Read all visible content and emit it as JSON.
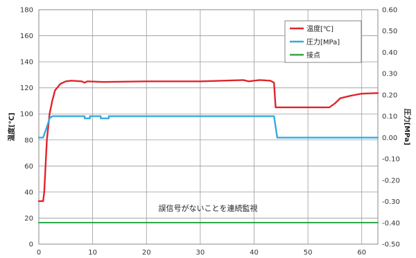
{
  "chart_data": {
    "type": "line",
    "x_range": [
      0,
      63
    ],
    "x_ticks": [
      0,
      10,
      20,
      30,
      40,
      50,
      60
    ],
    "y_left": {
      "label": "温度[℃]",
      "range": [
        0,
        180
      ],
      "ticks": [
        0,
        20,
        40,
        60,
        80,
        100,
        120,
        140,
        160,
        180
      ]
    },
    "y_right": {
      "label": "圧力[MPa]",
      "range": [
        -0.5,
        0.6
      ],
      "ticks": [
        "-0.50",
        "-0.40",
        "-0.30",
        "-0.20",
        "-0.10",
        "0.00",
        "0.10",
        "0.20",
        "0.30",
        "0.40",
        "0.50",
        "0.60"
      ]
    },
    "grid": true,
    "legend_position": "top-right",
    "annotation": "誤信号がないことを連続監視",
    "series": [
      {
        "name": "温度[℃]",
        "axis": "left",
        "color": "#e0242b",
        "points": [
          [
            0,
            33
          ],
          [
            0.8,
            33
          ],
          [
            1,
            40
          ],
          [
            1.5,
            80
          ],
          [
            2,
            100
          ],
          [
            2.5,
            110
          ],
          [
            3,
            118
          ],
          [
            4,
            123
          ],
          [
            5,
            125
          ],
          [
            6,
            125.5
          ],
          [
            8,
            125
          ],
          [
            8.5,
            124
          ],
          [
            9,
            125
          ],
          [
            12,
            124.5
          ],
          [
            20,
            125
          ],
          [
            30,
            125
          ],
          [
            38,
            126
          ],
          [
            39,
            125
          ],
          [
            41,
            126
          ],
          [
            43,
            125.5
          ],
          [
            43.7,
            124
          ],
          [
            44,
            105
          ],
          [
            50,
            105
          ],
          [
            54,
            105
          ],
          [
            55,
            108
          ],
          [
            56,
            112
          ],
          [
            58,
            114
          ],
          [
            60,
            115.5
          ],
          [
            63,
            116
          ]
        ]
      },
      {
        "name": "圧力[MPa]",
        "axis": "right",
        "color": "#35a9dd",
        "points": [
          [
            0,
            0.0
          ],
          [
            0.8,
            0.0
          ],
          [
            1.5,
            0.05
          ],
          [
            2,
            0.09
          ],
          [
            2.5,
            0.1
          ],
          [
            8.5,
            0.1
          ],
          [
            8.5,
            0.09
          ],
          [
            9.5,
            0.09
          ],
          [
            9.5,
            0.1
          ],
          [
            11.5,
            0.1
          ],
          [
            11.5,
            0.09
          ],
          [
            13,
            0.09
          ],
          [
            13,
            0.1
          ],
          [
            43.7,
            0.1
          ],
          [
            44.3,
            0.0
          ],
          [
            63,
            0.0
          ]
        ]
      },
      {
        "name": "接点",
        "axis": "left",
        "color": "#2ea64a",
        "points": [
          [
            0,
            16.5
          ],
          [
            63,
            16.5
          ]
        ]
      }
    ]
  }
}
